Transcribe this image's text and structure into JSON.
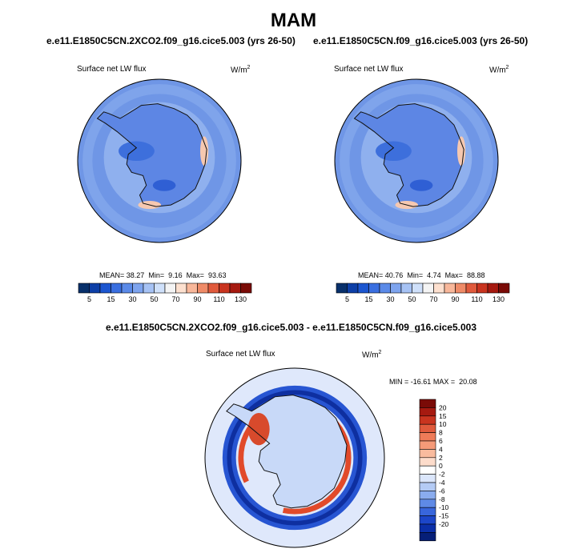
{
  "page_title": "MAM",
  "chart_data": [
    {
      "type": "heatmap",
      "projection": "south-polar-stereographic",
      "title": "e.e11.E1850C5CN.2XCO2.f09_g16.cice5.003 (yrs 26-50)",
      "variable": "Surface net LW flux",
      "units": "W/m",
      "units_exp": "2",
      "stats": {
        "mean_label": "MEAN=",
        "mean": "38.27",
        "min_label": "Min=",
        "min": "9.16",
        "max_label": "Max=",
        "max": "93.63"
      },
      "colorbar": {
        "orientation": "horizontal",
        "levels": [
          5,
          10,
          15,
          20,
          30,
          40,
          50,
          60,
          70,
          80,
          90,
          100,
          110,
          120,
          130
        ],
        "tick_labels": [
          "5",
          "15",
          "30",
          "50",
          "70",
          "90",
          "110",
          "130"
        ],
        "colors": [
          "#08306b",
          "#0d3fa7",
          "#1c56d0",
          "#3a6fe0",
          "#5b8ae8",
          "#7ea4ee",
          "#a6c2f4",
          "#cfe0fa",
          "#f4f4f4",
          "#fde0cf",
          "#f8b79a",
          "#ef8b68",
          "#e05a3c",
          "#c9341f",
          "#a61a10",
          "#7a0b07"
        ]
      }
    },
    {
      "type": "heatmap",
      "projection": "south-polar-stereographic",
      "title": "e.e11.E1850C5CN.f09_g16.cice5.003 (yrs 26-50)",
      "variable": "Surface net LW flux",
      "units": "W/m",
      "units_exp": "2",
      "stats": {
        "mean_label": "MEAN=",
        "mean": "40.76",
        "min_label": "Min=",
        "min": "4.74",
        "max_label": "Max=",
        "max": "88.88"
      },
      "colorbar": {
        "orientation": "horizontal",
        "levels": [
          5,
          10,
          15,
          20,
          30,
          40,
          50,
          60,
          70,
          80,
          90,
          100,
          110,
          120,
          130
        ],
        "tick_labels": [
          "5",
          "15",
          "30",
          "50",
          "70",
          "90",
          "110",
          "130"
        ],
        "colors": [
          "#08306b",
          "#0d3fa7",
          "#1c56d0",
          "#3a6fe0",
          "#5b8ae8",
          "#7ea4ee",
          "#a6c2f4",
          "#cfe0fa",
          "#f4f4f4",
          "#fde0cf",
          "#f8b79a",
          "#ef8b68",
          "#e05a3c",
          "#c9341f",
          "#a61a10",
          "#7a0b07"
        ]
      }
    },
    {
      "type": "heatmap",
      "projection": "south-polar-stereographic",
      "title": "e.e11.E1850C5CN.2XCO2.f09_g16.cice5.003 - e.e11.E1850C5CN.f09_g16.cice5.003",
      "variable": "Surface net LW flux",
      "units": "W/m",
      "units_exp": "2",
      "stats": {
        "min_label": "MIN =",
        "min": "-16.61",
        "max_label": "MAX =",
        "max": "20.08"
      },
      "colorbar": {
        "orientation": "vertical",
        "tick_labels": [
          "20",
          "15",
          "10",
          "8",
          "6",
          "4",
          "2",
          "0",
          "-2",
          "-4",
          "-6",
          "-8",
          "-10",
          "-15",
          "-20"
        ],
        "colors": [
          "#7a0b07",
          "#a61a10",
          "#c9341f",
          "#e05a3c",
          "#ef7b58",
          "#f59a78",
          "#f9bb9e",
          "#fddccb",
          "#ffffff",
          "#dbe6fb",
          "#b4cbf5",
          "#8aacee",
          "#5f8ae6",
          "#3866dc",
          "#1c46c9",
          "#0b2fa8",
          "#061f78"
        ]
      }
    }
  ]
}
